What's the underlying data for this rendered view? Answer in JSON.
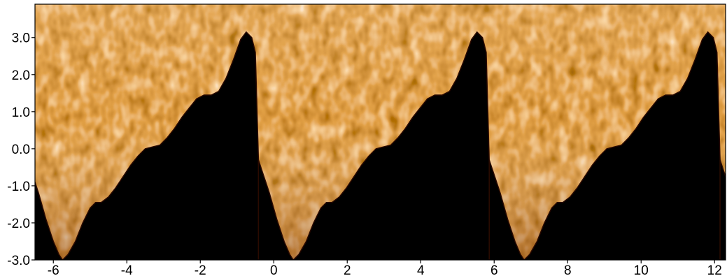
{
  "chart_data": {
    "type": "heatmap",
    "title": "",
    "xlabel": "",
    "ylabel": "",
    "xlim": [
      -6.5,
      12.3
    ],
    "ylim": [
      -3.0,
      3.9
    ],
    "x_ticks": [
      -6,
      -4,
      -2,
      0,
      2,
      4,
      6,
      8,
      10,
      12
    ],
    "x_tick_labels": [
      "-6",
      "-4",
      "-2",
      "0",
      "2",
      "4",
      "6",
      "8",
      "10",
      "12"
    ],
    "y_ticks": [
      -3.0,
      -2.0,
      -1.0,
      0.0,
      1.0,
      2.0,
      3.0
    ],
    "y_tick_labels": [
      "-3.0",
      "-2.0",
      "-1.0",
      "0.0",
      "1.0",
      "2.0",
      "3.0"
    ],
    "colormap": [
      "#000000",
      "#7a2a00",
      "#c25a10",
      "#f0a050",
      "#ffffff"
    ],
    "masked_region_color": "#000000",
    "grid": false,
    "legend": "none",
    "boundary_period": 6.283,
    "boundary_curve": {
      "x": [
        -6.7,
        -6.4,
        -6.2,
        -6.0,
        -5.85,
        -5.75,
        -5.6,
        -5.4,
        -5.2,
        -5.0,
        -4.85,
        -4.7,
        -4.5,
        -4.3,
        -4.1,
        -3.9,
        -3.7,
        -3.5,
        -3.3,
        -3.1,
        -2.9,
        -2.7,
        -2.5,
        -2.3,
        -2.1,
        -1.9,
        -1.7,
        -1.5,
        -1.3,
        -1.1,
        -0.9,
        -0.75,
        -0.6,
        -0.5
      ],
      "y": [
        -0.3,
        -1.2,
        -1.9,
        -2.5,
        -2.85,
        -3.0,
        -2.85,
        -2.5,
        -2.0,
        -1.6,
        -1.45,
        -1.45,
        -1.3,
        -1.05,
        -0.75,
        -0.45,
        -0.2,
        0.0,
        0.05,
        0.1,
        0.3,
        0.55,
        0.85,
        1.1,
        1.35,
        1.45,
        1.45,
        1.55,
        1.9,
        2.4,
        2.95,
        3.15,
        3.0,
        2.6
      ]
    }
  }
}
